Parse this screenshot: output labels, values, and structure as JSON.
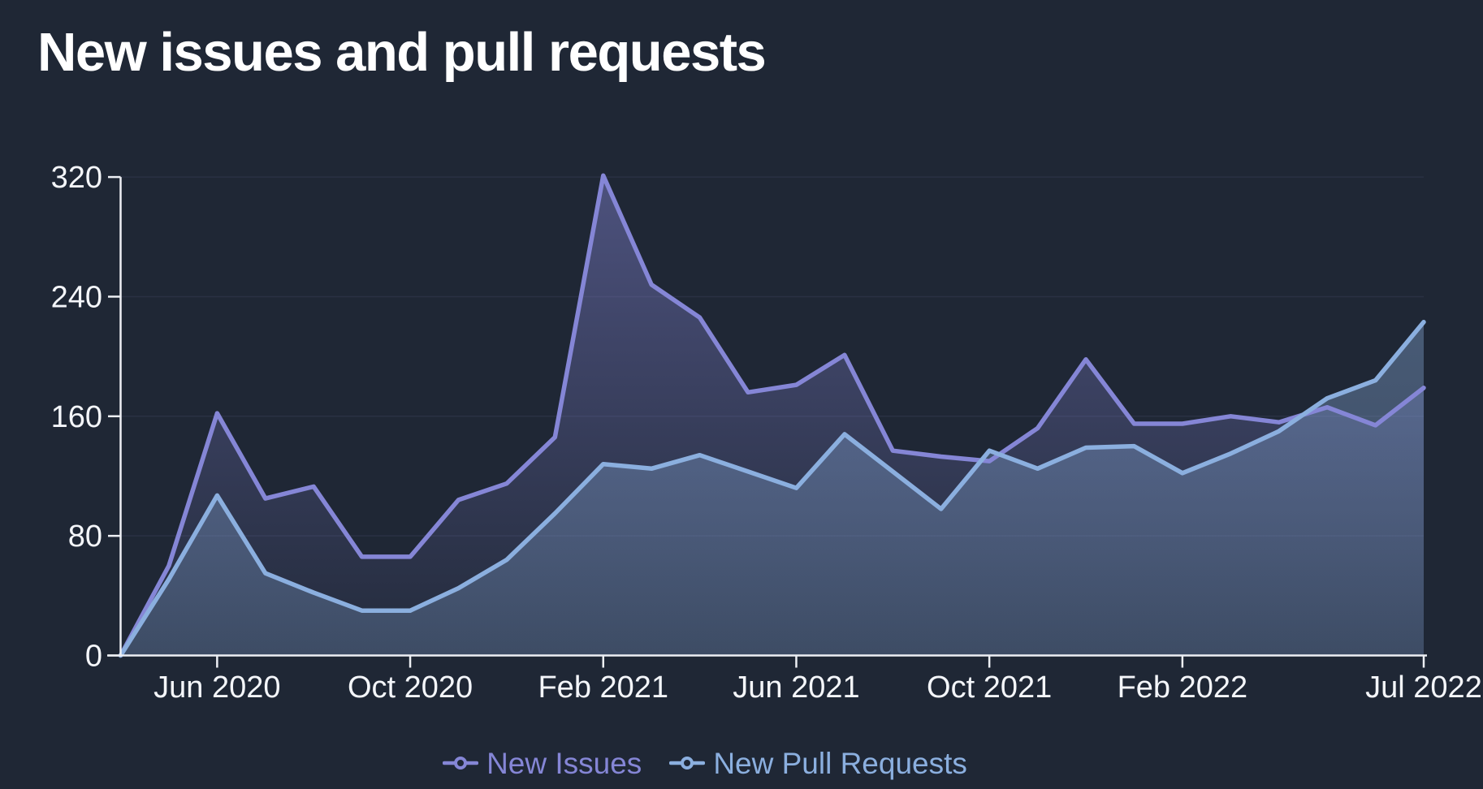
{
  "page": {
    "background": "#1f2735"
  },
  "header": {
    "title": "New issues and pull requests"
  },
  "chart_data": {
    "type": "area",
    "x": [
      "Apr 2020",
      "May 2020",
      "Jun 2020",
      "Jul 2020",
      "Aug 2020",
      "Sep 2020",
      "Oct 2020",
      "Nov 2020",
      "Dec 2020",
      "Jan 2021",
      "Feb 2021",
      "Mar 2021",
      "Apr 2021",
      "May 2021",
      "Jun 2021",
      "Jul 2021",
      "Aug 2021",
      "Sep 2021",
      "Oct 2021",
      "Nov 2021",
      "Dec 2021",
      "Jan 2022",
      "Feb 2022",
      "Mar 2022",
      "Apr 2022",
      "May 2022",
      "Jun 2022",
      "Jul 2022"
    ],
    "series": [
      {
        "name": "New Issues",
        "color": "#8586d6",
        "values": [
          0,
          60,
          162,
          105,
          113,
          66,
          66,
          104,
          115,
          146,
          321,
          248,
          226,
          176,
          181,
          201,
          137,
          133,
          130,
          152,
          198,
          155,
          155,
          160,
          156,
          166,
          154,
          179
        ]
      },
      {
        "name": "New Pull Requests",
        "color": "#8bafdf",
        "values": [
          0,
          51,
          107,
          55,
          42,
          30,
          30,
          45,
          64,
          95,
          128,
          125,
          134,
          123,
          112,
          148,
          123,
          98,
          137,
          125,
          139,
          140,
          122,
          135,
          150,
          172,
          184,
          223
        ]
      }
    ],
    "ylim": [
      0,
      320
    ],
    "y_ticks": [
      0,
      80,
      160,
      240,
      320
    ],
    "x_ticks": [
      {
        "index": 2,
        "label": "Jun 2020"
      },
      {
        "index": 6,
        "label": "Oct 2020"
      },
      {
        "index": 10,
        "label": "Feb 2021"
      },
      {
        "index": 14,
        "label": "Jun 2021"
      },
      {
        "index": 18,
        "label": "Oct 2021"
      },
      {
        "index": 22,
        "label": "Feb 2022"
      },
      {
        "index": 27,
        "label": "Jul 2022"
      }
    ],
    "grid": "horizontal-only",
    "legend_position": "bottom-center",
    "axis_color": "#edeff4",
    "grid_color": "#2a3144",
    "tick_label_color": "#f4f6fa",
    "title_color": "#ffffff"
  }
}
